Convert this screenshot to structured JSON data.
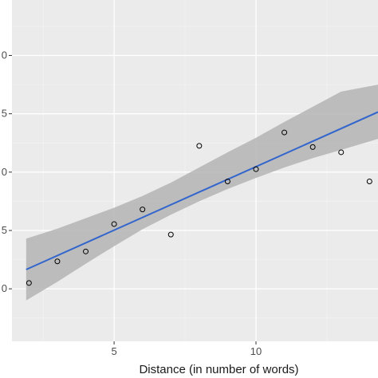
{
  "chart_data": {
    "type": "scatter",
    "title": "",
    "xlabel": "Distance (in number of words)",
    "ylabel": "",
    "xlim": [
      1.4,
      14.3
    ],
    "ylim": [
      -0.9,
      4.95
    ],
    "x_ticks": [
      5,
      10
    ],
    "x_tick_labels": [
      "5",
      "10"
    ],
    "x_minor_ticks": [
      2.5,
      7.5,
      12.5
    ],
    "y_ticks": [
      0,
      1,
      2,
      3,
      4
    ],
    "y_tick_labels": [
      "0",
      "5",
      "0",
      "5",
      "0"
    ],
    "y_minor_ticks": [
      -0.5,
      0.5,
      1.5,
      2.5,
      3.5,
      4.5
    ],
    "grid": true,
    "legend": "none",
    "series": [
      {
        "points": [
          {
            "x": 2,
            "y": 0.1
          },
          {
            "x": 3,
            "y": 0.47
          },
          {
            "x": 4,
            "y": 0.64
          },
          {
            "x": 5,
            "y": 1.11
          },
          {
            "x": 6,
            "y": 1.36
          },
          {
            "x": 7,
            "y": 0.93
          },
          {
            "x": 8,
            "y": 2.45
          },
          {
            "x": 9,
            "y": 1.84
          },
          {
            "x": 10,
            "y": 2.05
          },
          {
            "x": 11,
            "y": 2.68
          },
          {
            "x": 12,
            "y": 2.43
          },
          {
            "x": 13,
            "y": 2.34
          },
          {
            "x": 14,
            "y": 1.84
          }
        ]
      }
    ],
    "fit_line": {
      "x": [
        1.9,
        14.3
      ],
      "y": [
        0.33,
        3.03
      ]
    },
    "confidence_band": {
      "x": [
        1.9,
        3,
        4,
        5,
        6,
        7,
        8,
        9,
        10,
        11,
        12,
        13,
        14.3
      ],
      "lower": [
        -0.2,
        0.12,
        0.43,
        0.73,
        1.02,
        1.27,
        1.5,
        1.71,
        1.9,
        2.08,
        2.24,
        2.38,
        2.57
      ],
      "upper": [
        0.86,
        1.03,
        1.21,
        1.39,
        1.59,
        1.82,
        2.08,
        2.34,
        2.59,
        2.86,
        3.12,
        3.38,
        3.5
      ]
    },
    "colors": {
      "panel_background": "#ebebeb",
      "grid_major": "#ffffff",
      "grid_minor": "#f4f4f4",
      "fit_line": "#3366cc",
      "band_fill": "#b4b4b4",
      "point_stroke": "#000000",
      "tick": "#333333"
    }
  }
}
